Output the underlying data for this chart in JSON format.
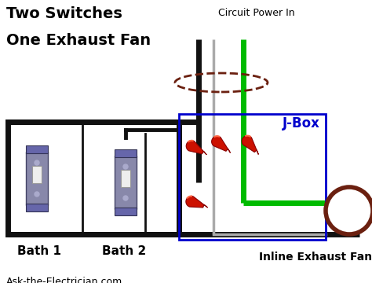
{
  "title_line1": "Two Switches",
  "title_line2": "One Exhaust Fan",
  "label_circuit": "Circuit Power In",
  "label_jbox": "J-Box",
  "label_bath1": "Bath 1",
  "label_bath2": "Bath 2",
  "label_fan": "Inline Exhaust Fan",
  "label_website": "Ask-the-Electrician.com",
  "bg_color": "#ffffff",
  "black_wire": "#111111",
  "gray_wire": "#aaaaaa",
  "green_wire": "#00bb00",
  "jbox_border": "#0000cc",
  "red_connector": "#cc1100",
  "dark_brown": "#6b2010",
  "title_fontsize": 14,
  "label_circuit_fontsize": 9,
  "label_fontsize": 9,
  "jbox_label_fontsize": 12,
  "fan_label_fontsize": 10,
  "website_fontsize": 9
}
